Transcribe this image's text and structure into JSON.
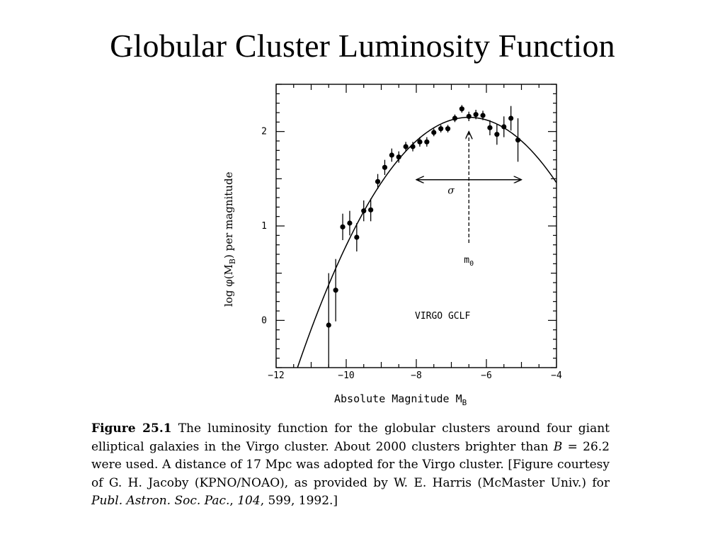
{
  "page": {
    "title": "Globular Cluster Luminosity Function"
  },
  "chart_data": {
    "type": "scatter",
    "title": "",
    "xlabel": "Absolute Magnitude M",
    "xlabel_sub": "B",
    "ylabel": "log φ(M",
    "ylabel_sub": "B",
    "ylabel_tail": ") per magnitude",
    "xlim": [
      -12,
      -4
    ],
    "ylim": [
      -0.5,
      2.5
    ],
    "x_ticks": [
      -12,
      -10,
      -8,
      -6,
      -4
    ],
    "x_tick_labels": [
      "−12",
      "−10",
      "−8",
      "−6",
      "−4"
    ],
    "y_ticks": [
      0,
      1,
      2
    ],
    "y_tick_labels": [
      "0",
      "1",
      "2"
    ],
    "grid": false,
    "annotations": {
      "sigma": "σ",
      "m0": "m",
      "m0_sub": "0",
      "panel_label": "VIRGO GCLF"
    },
    "sigma_arrow_x": [
      -8.0,
      -5.0
    ],
    "sigma_arrow_y": 1.49,
    "peak_x": -6.5,
    "m0_arrow_y": [
      0.82,
      2.0
    ],
    "gaussian_fit": {
      "peak_x": -6.5,
      "peak_y": 2.15,
      "sigma": 1.4
    },
    "points": [
      {
        "x": -10.5,
        "y": -0.05,
        "err": 0.55
      },
      {
        "x": -10.3,
        "y": 0.32,
        "err": 0.33
      },
      {
        "x": -10.1,
        "y": 0.99,
        "err": 0.14
      },
      {
        "x": -9.9,
        "y": 1.03,
        "err": 0.13
      },
      {
        "x": -9.7,
        "y": 0.88,
        "err": 0.15
      },
      {
        "x": -9.5,
        "y": 1.16,
        "err": 0.11
      },
      {
        "x": -9.3,
        "y": 1.17,
        "err": 0.12
      },
      {
        "x": -9.1,
        "y": 1.47,
        "err": 0.08
      },
      {
        "x": -8.9,
        "y": 1.62,
        "err": 0.08
      },
      {
        "x": -8.7,
        "y": 1.75,
        "err": 0.07
      },
      {
        "x": -8.5,
        "y": 1.73,
        "err": 0.06
      },
      {
        "x": -8.3,
        "y": 1.84,
        "err": 0.05
      },
      {
        "x": -8.1,
        "y": 1.84,
        "err": 0.05
      },
      {
        "x": -7.9,
        "y": 1.89,
        "err": 0.05
      },
      {
        "x": -7.7,
        "y": 1.89,
        "err": 0.05
      },
      {
        "x": -7.5,
        "y": 1.99,
        "err": 0.04
      },
      {
        "x": -7.3,
        "y": 2.03,
        "err": 0.04
      },
      {
        "x": -7.1,
        "y": 2.03,
        "err": 0.04
      },
      {
        "x": -6.9,
        "y": 2.14,
        "err": 0.04
      },
      {
        "x": -6.7,
        "y": 2.24,
        "err": 0.04
      },
      {
        "x": -6.5,
        "y": 2.16,
        "err": 0.05
      },
      {
        "x": -6.3,
        "y": 2.18,
        "err": 0.05
      },
      {
        "x": -6.1,
        "y": 2.17,
        "err": 0.05
      },
      {
        "x": -5.9,
        "y": 2.04,
        "err": 0.08
      },
      {
        "x": -5.7,
        "y": 1.97,
        "err": 0.11
      },
      {
        "x": -5.5,
        "y": 2.05,
        "err": 0.11
      },
      {
        "x": -5.3,
        "y": 2.14,
        "err": 0.13
      },
      {
        "x": -5.1,
        "y": 1.91,
        "err": 0.23
      }
    ]
  },
  "caption": {
    "label": "Figure 25.1",
    "text_1": " The luminosity function for the globular clusters around four giant elliptical galaxies in the Virgo cluster. About 2000 clusters brighter than ",
    "var_b": "B",
    "text_2": " = 26.2 were used. A distance of 17 Mpc was adopted for the Virgo cluster. [Figure courtesy of G. H. Jacoby (KPNO/NOAO), as provided by W. E. Harris (McMaster Univ.) for ",
    "journal": "Publ. Astron. Soc. Pac.",
    "text_3": ", ",
    "volume": "104",
    "text_4": ", 599, 1992.]"
  }
}
